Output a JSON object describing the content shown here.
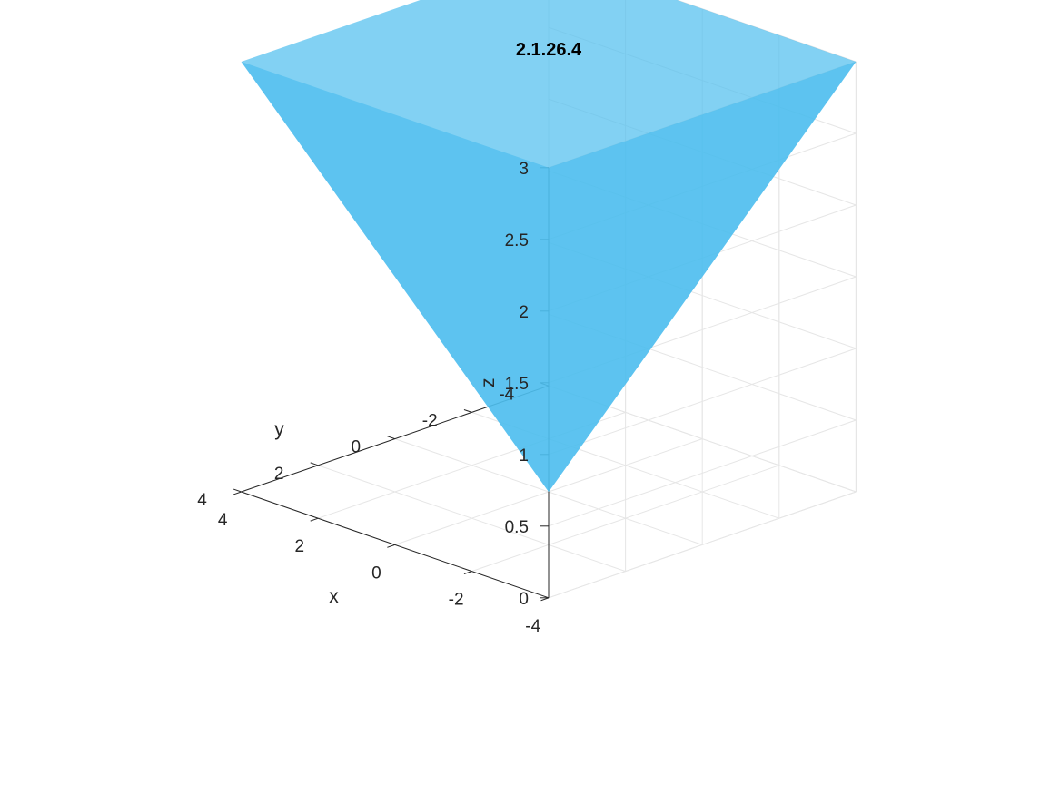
{
  "chart_data": {
    "type": "surface3d",
    "title": "2.1.26.4",
    "xlabel": "x",
    "ylabel": "y",
    "zlabel": "z",
    "xlim": [
      -4,
      4
    ],
    "ylim": [
      -4,
      4
    ],
    "zlim": [
      0,
      3
    ],
    "x_ticks": [
      -4,
      -2,
      0,
      2,
      4
    ],
    "y_ticks": [
      -4,
      -2,
      0,
      2,
      4
    ],
    "z_ticks": [
      0,
      0.5,
      1,
      1.5,
      2,
      2.5,
      3
    ],
    "x_tick_labels": [
      "-4",
      "-2",
      "0",
      "2",
      "4"
    ],
    "y_tick_labels": [
      "-4",
      "-2",
      "0",
      "2",
      "4"
    ],
    "z_tick_labels": [
      "0",
      "0.5",
      "1",
      "1.5",
      "2",
      "2.5",
      "3"
    ],
    "grid": true,
    "view": "isometric (azimuth -135°, elevation ~30°)",
    "surface": {
      "description_formula": "z = max(|x|, |y|) * 3/4",
      "apex": [
        0,
        0,
        0
      ],
      "top_corners": [
        [
          4,
          4,
          3
        ],
        [
          -4,
          4,
          3
        ],
        [
          -4,
          -4,
          3
        ],
        [
          4,
          -4,
          3
        ]
      ],
      "color": "#4dbeee",
      "opacity": 0.7
    },
    "colors": {
      "grid": "#e6e6e6",
      "axis": "#262626",
      "surface": "#4dbeee"
    }
  }
}
